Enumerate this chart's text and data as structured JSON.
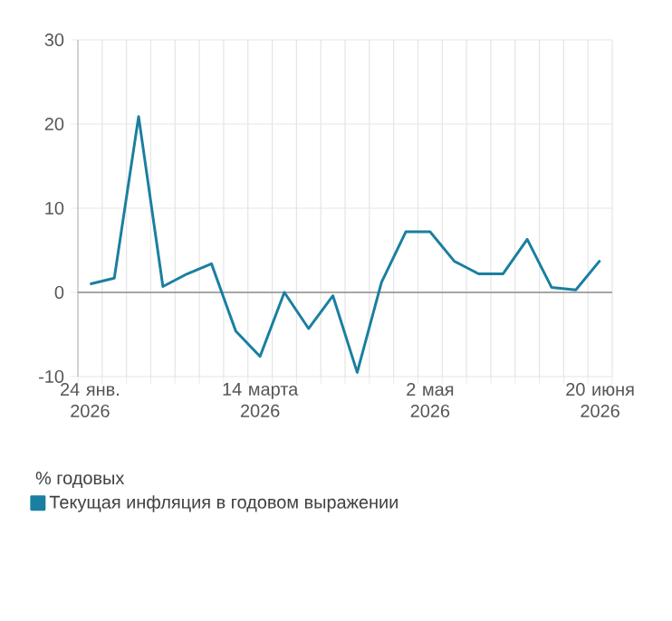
{
  "chart_data": {
    "type": "line",
    "x": [
      "2026-01-24",
      "2026-01-31",
      "2026-02-07",
      "2026-02-14",
      "2026-02-21",
      "2026-02-28",
      "2026-03-07",
      "2026-03-14",
      "2026-03-21",
      "2026-03-28",
      "2026-04-04",
      "2026-04-11",
      "2026-04-18",
      "2026-04-25",
      "2026-05-02",
      "2026-05-09",
      "2026-05-16",
      "2026-05-23",
      "2026-05-30",
      "2026-06-06",
      "2026-06-13",
      "2026-06-20"
    ],
    "series": [
      {
        "name": "Текущая инфляция в годовом выражении",
        "color": "#1a7fa0",
        "values": [
          1.0,
          1.7,
          20.9,
          0.7,
          2.2,
          3.4,
          -4.6,
          -7.6,
          0,
          -4.3,
          -0.4,
          -9.5,
          1.2,
          7.2,
          7.2,
          3.7,
          2.2,
          2.2,
          6.3,
          0.6,
          0.3,
          3.8
        ]
      }
    ],
    "xlim": [
      "2026-01-20T12:00",
      "2026-06-23T12:00"
    ],
    "xticks": [
      {
        "value": "2026-01-20T12:00",
        "label": null
      },
      {
        "value": "2026-01-27T12:00",
        "label": null
      },
      {
        "value": "2026-02-03T12:00",
        "label": null
      },
      {
        "value": "2026-02-10T12:00",
        "label": null
      },
      {
        "value": "2026-02-17T12:00",
        "label": null
      },
      {
        "value": "2026-02-24T12:00",
        "label": null
      },
      {
        "value": "2026-03-03T12:00",
        "label": null
      },
      {
        "value": "2026-03-10T12:00",
        "label": null
      },
      {
        "value": "2026-03-17T12:00",
        "label": null
      },
      {
        "value": "2026-03-24T12:00",
        "label": null
      },
      {
        "value": "2026-03-31T12:00",
        "label": null
      },
      {
        "value": "2026-04-07T12:00",
        "label": null
      },
      {
        "value": "2026-04-14T12:00",
        "label": null
      },
      {
        "value": "2026-04-21T12:00",
        "label": null
      },
      {
        "value": "2026-04-28T12:00",
        "label": null
      },
      {
        "value": "2026-05-05T12:00",
        "label": null
      },
      {
        "value": "2026-05-12T12:00",
        "label": null
      },
      {
        "value": "2026-05-19T12:00",
        "label": null
      },
      {
        "value": "2026-05-26T12:00",
        "label": null
      },
      {
        "value": "2026-06-02T12:00",
        "label": null
      },
      {
        "value": "2026-06-09T12:00",
        "label": null
      },
      {
        "value": "2026-06-16T12:00",
        "label": null
      },
      {
        "value": "2026-06-23T12:00",
        "label": null
      },
      {
        "value": "2026-01-24",
        "label": "24 янв. 2026"
      },
      {
        "value": "2026-03-14",
        "label": "14 марта 2026"
      },
      {
        "value": "2026-05-02",
        "label": "2 мая 2026"
      },
      {
        "value": "2026-06-20",
        "label": "20 июня 2026"
      }
    ],
    "ylim": [
      -10,
      30
    ],
    "yticks": [
      -10,
      0,
      10,
      20,
      30
    ],
    "ref_lines": [
      {
        "axis": "y",
        "value": 0,
        "color": "#8c8c8c"
      }
    ],
    "grid": true,
    "legend": "bottom",
    "marker": "none",
    "line_style": "solid",
    "annotations": [
      "% годовых"
    ]
  }
}
